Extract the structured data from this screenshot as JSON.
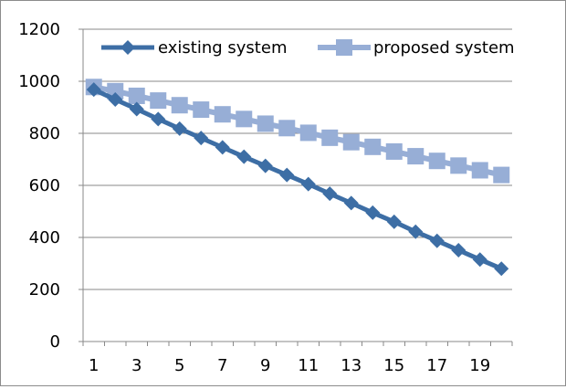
{
  "chart_data": {
    "type": "line",
    "title": "",
    "xlabel": "",
    "ylabel": "",
    "x": [
      1,
      2,
      3,
      4,
      5,
      6,
      7,
      8,
      9,
      10,
      11,
      12,
      13,
      14,
      15,
      16,
      17,
      18,
      19,
      20
    ],
    "x_tick_labels": [
      "1",
      "3",
      "5",
      "7",
      "9",
      "11",
      "13",
      "15",
      "17",
      "19"
    ],
    "y_tick_labels": [
      "0",
      "200",
      "400",
      "600",
      "800",
      "1000",
      "1200"
    ],
    "ylim": [
      0,
      1200
    ],
    "grid": "horizontal",
    "legend_position": "top",
    "series": [
      {
        "name": "existing system",
        "color": "#3d6ea5",
        "marker": "diamond",
        "values": [
          968,
          930,
          893,
          855,
          818,
          782,
          746,
          710,
          675,
          640,
          605,
          568,
          532,
          495,
          460,
          422,
          387,
          351,
          315,
          280
        ]
      },
      {
        "name": "proposed system",
        "color": "#97aed6",
        "marker": "square",
        "values": [
          978,
          962,
          944,
          926,
          908,
          891,
          873,
          855,
          837,
          820,
          802,
          783,
          766,
          748,
          730,
          712,
          694,
          676,
          658,
          640
        ]
      }
    ]
  }
}
